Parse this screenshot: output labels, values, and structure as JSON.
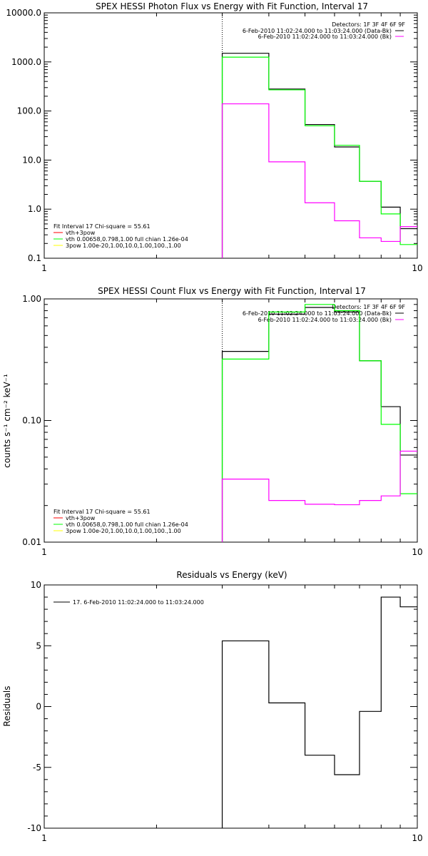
{
  "chart_data": [
    {
      "type": "line",
      "title": "SPEX HESSI Photon Flux vs Energy with Fit Function, Interval 17",
      "xlabel": "",
      "ylabel": "",
      "xscale": "log",
      "yscale": "log",
      "xlim": [
        1,
        10
      ],
      "ylim": [
        0.1,
        10000
      ],
      "xticks": [
        "1",
        "10"
      ],
      "yticks": [
        "0.1",
        "1.0",
        "10.0",
        "100.0",
        "1000.0",
        "10000.0"
      ],
      "vline": 3,
      "detectors": "Detectors: 1F 3F 4F 6F 9F",
      "legend_top": [
        {
          "label": "6-Feb-2010 11:02:24.000 to 11:03:24.000 (Data-Bk)",
          "color": "#000000"
        },
        {
          "label": "6-Feb-2010 11:02:24.000 to 11:03:24.000 (Bk)",
          "color": "#ff00ff"
        }
      ],
      "legend_bottom": {
        "header": "Fit Interval 17    Chi-square = 55.61",
        "items": [
          {
            "label": "vth+3pow",
            "color": "#ff0000"
          },
          {
            "label": "vth 0.00658,0.798,1.00  full chian 1.26e-04",
            "color": "#00ff00"
          },
          {
            "label": "3pow 1.00e-20,1.00,10.0,1.00,100.,1.00",
            "color": "#ffff00"
          }
        ]
      },
      "edges": [
        3,
        4,
        5,
        6,
        7,
        8,
        9,
        10
      ],
      "series": [
        {
          "color": "#000000",
          "values": [
            1500,
            280,
            53,
            18.5,
            3.7,
            1.1,
            0.4
          ]
        },
        {
          "color": "#00ff00",
          "values": [
            1250,
            270,
            50,
            20,
            3.7,
            0.8,
            0.19
          ]
        },
        {
          "color": "#ff00ff",
          "values": [
            140,
            9.2,
            1.35,
            0.58,
            0.26,
            0.22,
            0.44
          ]
        }
      ]
    },
    {
      "type": "line",
      "title": "SPEX HESSI Count Flux vs Energy with Fit Function, Interval 17",
      "xlabel": "",
      "ylabel": "counts s⁻¹ cm⁻² keV⁻¹",
      "xscale": "log",
      "yscale": "log",
      "xlim": [
        1,
        10
      ],
      "ylim": [
        0.01,
        1
      ],
      "xticks": [
        "1",
        "10"
      ],
      "yticks": [
        "0.01",
        "0.10",
        "1.00"
      ],
      "vline": 3,
      "detectors": "Detectors: 1F 3F 4F 6F 9F",
      "legend_top": [
        {
          "label": "6-Feb-2010 11:02:24.000 to 11:03:24.000 (Data-Bk)",
          "color": "#000000"
        },
        {
          "label": "6-Feb-2010 11:02:24.000 to 11:03:24.000 (Bk)",
          "color": "#ff00ff"
        }
      ],
      "legend_bottom": {
        "header": "Fit Interval 17    Chi-square = 55.61",
        "items": [
          {
            "label": "vth+3pow",
            "color": "#ff0000"
          },
          {
            "label": "vth 0.00658,0.798,1.00  full chian 1.26e-04",
            "color": "#00ff00"
          },
          {
            "label": "3pow 1.00e-20,1.00,10.0,1.00,100.,1.00",
            "color": "#ffff00"
          }
        ]
      },
      "edges": [
        3,
        4,
        5,
        6,
        7,
        8,
        9,
        10
      ],
      "series": [
        {
          "color": "#000000",
          "values": [
            0.37,
            0.75,
            0.85,
            0.78,
            0.31,
            0.13,
            0.052
          ]
        },
        {
          "color": "#00ff00",
          "values": [
            0.32,
            0.78,
            0.9,
            0.8,
            0.31,
            0.093,
            0.025
          ]
        },
        {
          "color": "#ff00ff",
          "values": [
            0.033,
            0.022,
            0.0205,
            0.0203,
            0.022,
            0.024,
            0.056
          ]
        }
      ]
    },
    {
      "type": "line",
      "title": "Residuals vs Energy (keV)",
      "xlabel": "",
      "ylabel": "Residuals",
      "xscale": "log",
      "yscale": "linear",
      "xlim": [
        1,
        10
      ],
      "ylim": [
        -10,
        10
      ],
      "xticks": [
        "1",
        "10"
      ],
      "yticks": [
        "-10",
        "-5",
        "0",
        "5",
        "10"
      ],
      "legend": "17.  6-Feb-2010 11:02:24.000 to 11:03:24.000",
      "edges": [
        3,
        4,
        5,
        6,
        7,
        8,
        9,
        10
      ],
      "series": [
        {
          "color": "#000000",
          "values": [
            5.4,
            0.3,
            -4.0,
            -5.6,
            -0.4,
            9.0,
            8.2
          ]
        }
      ]
    }
  ]
}
